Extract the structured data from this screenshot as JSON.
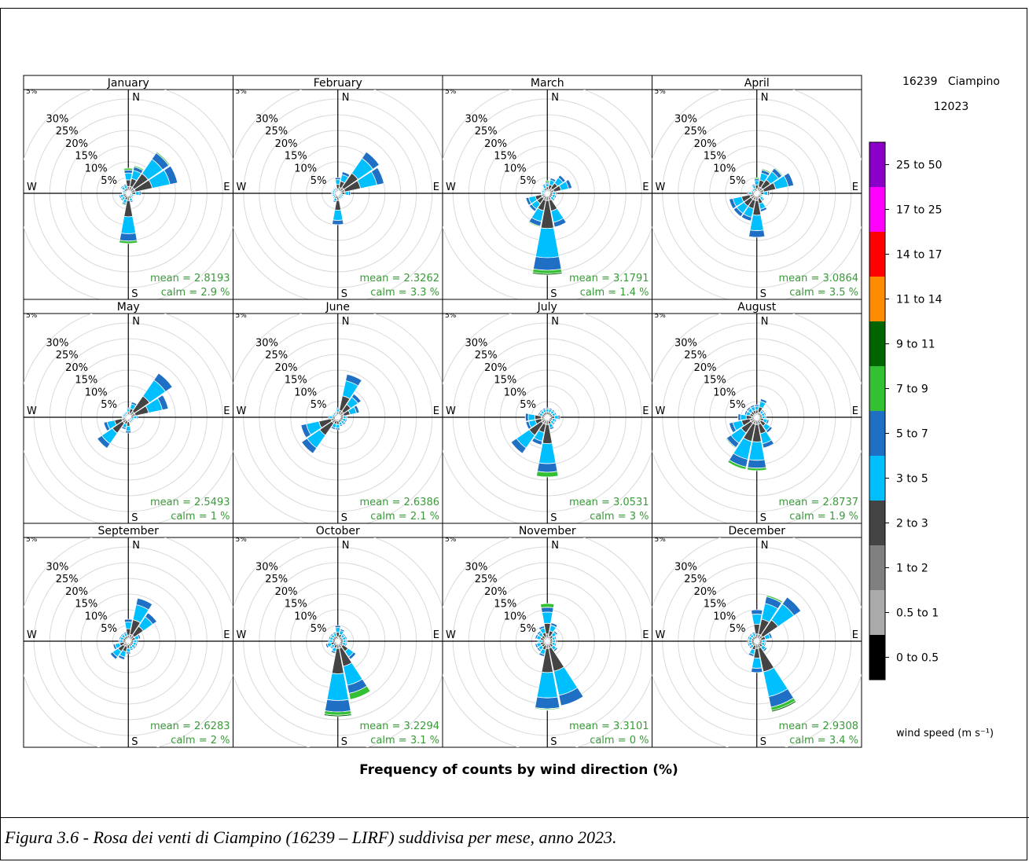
{
  "caption": "Figura 3.6 - Rosa dei venti di Ciampino (16239 – LIRF) suddivisa per mese, anno 2023.",
  "chart_data": {
    "type": "windrose",
    "title": "Frequency of counts by wind direction (%)",
    "station": "16239   Ciampino",
    "period": "12023",
    "radial_ticks": [
      "5%",
      "10%",
      "15%",
      "20%",
      "25%",
      "30%"
    ],
    "radial_max": 35,
    "cardinal_labels": [
      "N",
      "E",
      "S",
      "W"
    ],
    "directions": [
      "N",
      "NNE",
      "NE",
      "ENE",
      "E",
      "ESE",
      "SE",
      "SSE",
      "S",
      "SSW",
      "SW",
      "WSW",
      "W",
      "WNW",
      "NW",
      "NNW"
    ],
    "legend": {
      "title": "wind speed (m s⁻¹)",
      "bins": [
        {
          "label": "0 to 0.5",
          "color": "#000000"
        },
        {
          "label": "0.5 to 1",
          "color": "#aaaaaa"
        },
        {
          "label": "1 to 2",
          "color": "#808080"
        },
        {
          "label": "2 to 3",
          "color": "#444444"
        },
        {
          "label": "3 to 5",
          "color": "#00bfff"
        },
        {
          "label": "5 to 7",
          "color": "#1f6fc5"
        },
        {
          "label": "7 to 9",
          "color": "#33c133"
        },
        {
          "label": "9 to 11",
          "color": "#006400"
        },
        {
          "label": "11 to 14",
          "color": "#ff8c00"
        },
        {
          "label": "14 to 17",
          "color": "#ff0000"
        },
        {
          "label": "17 to 25",
          "color": "#ff00ff"
        },
        {
          "label": "25 to 50",
          "color": "#8b00c9"
        }
      ]
    },
    "months": [
      {
        "name": "January",
        "mean": "mean  =  2.8193",
        "calm": "calm = 2.9 %",
        "totals": [
          8,
          9,
          16,
          16,
          4,
          2,
          2,
          3,
          16,
          4,
          3,
          3,
          2,
          2,
          3,
          3
        ],
        "strong": [
          0.6,
          0.4,
          0.4,
          0,
          0,
          0,
          0,
          0,
          0.8,
          0.3,
          0,
          0,
          0,
          0,
          0,
          0
        ]
      },
      {
        "name": "February",
        "mean": "mean  =  2.3262",
        "calm": "calm = 3.3 %",
        "totals": [
          5,
          7,
          16,
          15,
          4,
          2,
          2,
          2,
          10,
          3,
          2,
          2,
          2,
          2,
          2,
          2
        ],
        "strong": [
          0,
          0,
          0,
          0,
          0,
          0,
          0,
          0,
          0,
          0,
          0,
          0,
          0,
          0,
          0,
          0
        ]
      },
      {
        "name": "March",
        "mean": "mean  =  3.1791",
        "calm": "calm = 1.4 %",
        "totals": [
          4,
          5,
          7,
          8,
          3,
          3,
          3,
          11,
          26,
          11,
          7,
          7,
          2,
          2,
          2,
          3
        ],
        "strong": [
          0.5,
          0,
          0,
          0,
          0,
          0,
          0,
          0,
          1.5,
          0.3,
          0,
          0,
          0,
          0,
          0,
          0
        ]
      },
      {
        "name": "April",
        "mean": "mean  =  3.0864",
        "calm": "calm = 3.5 %",
        "totals": [
          5,
          8,
          10,
          12,
          4,
          2,
          3,
          6,
          14,
          9,
          9,
          9,
          3,
          2,
          2,
          3
        ],
        "strong": [
          0.4,
          0.4,
          0.3,
          0,
          0,
          0,
          0,
          0,
          0,
          0,
          0,
          0,
          0,
          0,
          0,
          0
        ]
      },
      {
        "name": "May",
        "mean": "mean  =  2.5493",
        "calm": "calm = 1 %",
        "totals": [
          3,
          5,
          17,
          13,
          3,
          2,
          2,
          2,
          5,
          4,
          12,
          8,
          2,
          2,
          2,
          2
        ],
        "strong": [
          0,
          0,
          0,
          0,
          0,
          0,
          0,
          0,
          0,
          0,
          0,
          0,
          0,
          0,
          0,
          0
        ]
      },
      {
        "name": "June",
        "mean": "mean  =  2.6386",
        "calm": "calm = 2.1 %",
        "totals": [
          3,
          14,
          9,
          7,
          3,
          3,
          3,
          3,
          4,
          4,
          14,
          12,
          3,
          2,
          2,
          2
        ],
        "strong": [
          0,
          0,
          0,
          0,
          0,
          0,
          0,
          0,
          0,
          0,
          0,
          0,
          0,
          0,
          0,
          0
        ]
      },
      {
        "name": "July",
        "mean": "mean  =  3.0531",
        "calm": "calm = 3 %",
        "totals": [
          3,
          3,
          3,
          3,
          4,
          3,
          3,
          4,
          19,
          9,
          14,
          7,
          7,
          3,
          3,
          3
        ],
        "strong": [
          0,
          0,
          0,
          0,
          0,
          0,
          0,
          0,
          1.5,
          0,
          0,
          0,
          0,
          0,
          0,
          0
        ]
      },
      {
        "name": "August",
        "mean": "mean  =  2.8737",
        "calm": "calm = 1.9 %",
        "totals": [
          4,
          6,
          3,
          3,
          3,
          4,
          6,
          10,
          17,
          17,
          12,
          9,
          6,
          4,
          4,
          4
        ],
        "strong": [
          0,
          0,
          0,
          0,
          0,
          0,
          0,
          0,
          0.8,
          0.8,
          0.3,
          0,
          0,
          0,
          0,
          0
        ]
      },
      {
        "name": "September",
        "mean": "mean  =  2.6283",
        "calm": "calm = 2 %",
        "totals": [
          7,
          14,
          11,
          4,
          3,
          3,
          3,
          3,
          4,
          6,
          7,
          5,
          3,
          3,
          3,
          3
        ],
        "strong": [
          0,
          0,
          0,
          0,
          0,
          0,
          0,
          0,
          0,
          0,
          0,
          0,
          0,
          0,
          0,
          0
        ]
      },
      {
        "name": "October",
        "mean": "mean  =  3.2294",
        "calm": "calm = 3.1 %",
        "totals": [
          5,
          4,
          3,
          3,
          3,
          3,
          7,
          19,
          24,
          4,
          3,
          4,
          3,
          3,
          3,
          3
        ],
        "strong": [
          0,
          0,
          0,
          0,
          0,
          0,
          0,
          2,
          1.5,
          0,
          0,
          0,
          0,
          0,
          0,
          0
        ]
      },
      {
        "name": "November",
        "mean": "mean  =  3.3101",
        "calm": "calm = 0 %",
        "totals": [
          12,
          6,
          4,
          3,
          3,
          3,
          4,
          21,
          22,
          5,
          4,
          4,
          3,
          4,
          4,
          5
        ],
        "strong": [
          1.2,
          0,
          0,
          0,
          0,
          0,
          0,
          0,
          0.5,
          0,
          0,
          0,
          0,
          0,
          0,
          0
        ]
      },
      {
        "name": "December",
        "mean": "mean  =  2.9308",
        "calm": "calm = 3.4 %",
        "totals": [
          10,
          15,
          17,
          5,
          3,
          3,
          4,
          23,
          10,
          5,
          3,
          3,
          3,
          3,
          3,
          3
        ],
        "strong": [
          0,
          0.5,
          0,
          0,
          0,
          0,
          0,
          1.5,
          0,
          0,
          0,
          0,
          0,
          0,
          0,
          0
        ]
      }
    ]
  }
}
